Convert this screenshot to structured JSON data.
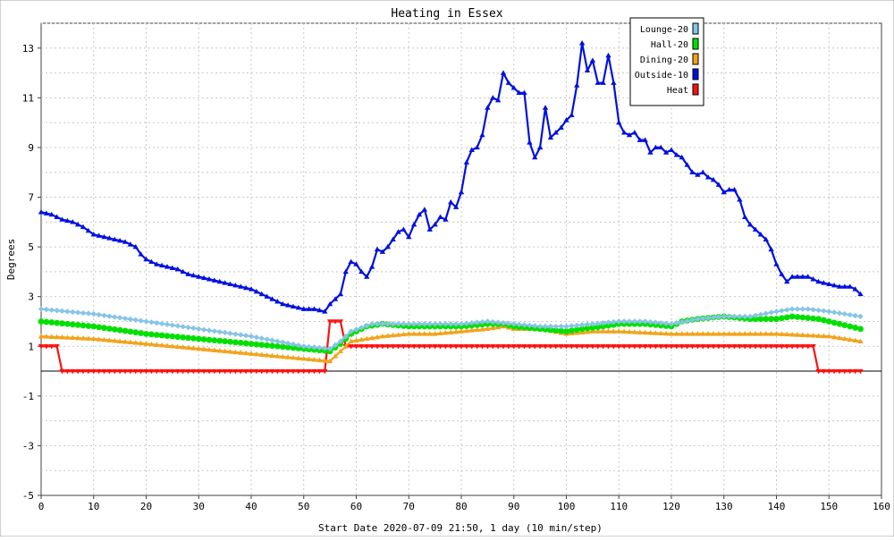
{
  "chart_data": {
    "type": "line",
    "title": "Heating in Essex",
    "xlabel": "Start Date 2020-07-09 21:50, 1 day (10 min/step)",
    "ylabel": "Degrees",
    "xlim": [
      0,
      160
    ],
    "ylim": [
      -5,
      14
    ],
    "xticks": [
      "0",
      "10",
      "20",
      "30",
      "40",
      "50",
      "60",
      "70",
      "80",
      "90",
      "100",
      "110",
      "120",
      "130",
      "140",
      "150",
      "160"
    ],
    "yticks": [
      "13",
      "11",
      "9",
      "7",
      "5",
      "3",
      "1",
      "-1",
      "-3",
      "-5"
    ],
    "grid": true,
    "legend_position": "top-right",
    "series": [
      {
        "name": "Lounge-20",
        "color": "#87c4e6",
        "marker": "diamond",
        "points": [
          [
            0,
            2.5
          ],
          [
            10,
            2.3
          ],
          [
            20,
            2.0
          ],
          [
            30,
            1.7
          ],
          [
            40,
            1.4
          ],
          [
            45,
            1.2
          ],
          [
            50,
            1.0
          ],
          [
            55,
            0.9
          ],
          [
            57,
            1.2
          ],
          [
            59,
            1.6
          ],
          [
            63,
            1.9
          ],
          [
            70,
            1.9
          ],
          [
            80,
            1.9
          ],
          [
            85,
            2.0
          ],
          [
            90,
            1.9
          ],
          [
            95,
            1.8
          ],
          [
            100,
            1.8
          ],
          [
            105,
            1.9
          ],
          [
            110,
            2.0
          ],
          [
            115,
            2.0
          ],
          [
            120,
            1.9
          ],
          [
            125,
            2.1
          ],
          [
            130,
            2.2
          ],
          [
            135,
            2.2
          ],
          [
            140,
            2.4
          ],
          [
            143,
            2.5
          ],
          [
            146,
            2.5
          ],
          [
            150,
            2.4
          ],
          [
            153,
            2.3
          ],
          [
            156,
            2.2
          ]
        ]
      },
      {
        "name": "Hall-20",
        "color": "#00e000",
        "marker": "circle",
        "points": [
          [
            0,
            2.0
          ],
          [
            10,
            1.8
          ],
          [
            20,
            1.5
          ],
          [
            30,
            1.3
          ],
          [
            40,
            1.1
          ],
          [
            50,
            0.9
          ],
          [
            55,
            0.8
          ],
          [
            57,
            1.1
          ],
          [
            59,
            1.5
          ],
          [
            62,
            1.8
          ],
          [
            65,
            1.9
          ],
          [
            70,
            1.8
          ],
          [
            80,
            1.8
          ],
          [
            85,
            1.9
          ],
          [
            88,
            1.9
          ],
          [
            90,
            1.8
          ],
          [
            95,
            1.7
          ],
          [
            100,
            1.6
          ],
          [
            103,
            1.7
          ],
          [
            107,
            1.8
          ],
          [
            110,
            1.9
          ],
          [
            115,
            1.9
          ],
          [
            120,
            1.8
          ],
          [
            122,
            2.0
          ],
          [
            125,
            2.1
          ],
          [
            130,
            2.2
          ],
          [
            135,
            2.1
          ],
          [
            140,
            2.1
          ],
          [
            143,
            2.2
          ],
          [
            148,
            2.1
          ],
          [
            152,
            1.9
          ],
          [
            156,
            1.7
          ]
        ]
      },
      {
        "name": "Dining-20",
        "color": "#f2a31a",
        "marker": "triangle",
        "points": [
          [
            0,
            1.4
          ],
          [
            10,
            1.3
          ],
          [
            20,
            1.1
          ],
          [
            30,
            0.9
          ],
          [
            40,
            0.7
          ],
          [
            50,
            0.5
          ],
          [
            55,
            0.4
          ],
          [
            57,
            0.8
          ],
          [
            59,
            1.2
          ],
          [
            62,
            1.3
          ],
          [
            65,
            1.4
          ],
          [
            70,
            1.5
          ],
          [
            75,
            1.5
          ],
          [
            80,
            1.6
          ],
          [
            85,
            1.7
          ],
          [
            88,
            1.8
          ],
          [
            90,
            1.7
          ],
          [
            95,
            1.7
          ],
          [
            100,
            1.5
          ],
          [
            105,
            1.6
          ],
          [
            110,
            1.6
          ],
          [
            120,
            1.5
          ],
          [
            130,
            1.5
          ],
          [
            140,
            1.5
          ],
          [
            150,
            1.4
          ],
          [
            156,
            1.2
          ]
        ]
      },
      {
        "name": "Outside-10",
        "color": "#0010e0",
        "marker": "triangle",
        "points": [
          [
            0,
            6.4
          ],
          [
            2,
            6.3
          ],
          [
            4,
            6.1
          ],
          [
            6,
            6.0
          ],
          [
            8,
            5.8
          ],
          [
            10,
            5.5
          ],
          [
            12,
            5.4
          ],
          [
            14,
            5.3
          ],
          [
            16,
            5.2
          ],
          [
            18,
            5.0
          ],
          [
            19,
            4.7
          ],
          [
            20,
            4.5
          ],
          [
            22,
            4.3
          ],
          [
            24,
            4.2
          ],
          [
            26,
            4.1
          ],
          [
            28,
            3.9
          ],
          [
            30,
            3.8
          ],
          [
            32,
            3.7
          ],
          [
            34,
            3.6
          ],
          [
            36,
            3.5
          ],
          [
            38,
            3.4
          ],
          [
            40,
            3.3
          ],
          [
            42,
            3.1
          ],
          [
            44,
            2.9
          ],
          [
            46,
            2.7
          ],
          [
            48,
            2.6
          ],
          [
            50,
            2.5
          ],
          [
            52,
            2.5
          ],
          [
            54,
            2.4
          ],
          [
            55,
            2.7
          ],
          [
            57,
            3.1
          ],
          [
            58,
            4.0
          ],
          [
            59,
            4.4
          ],
          [
            60,
            4.3
          ],
          [
            61,
            4.0
          ],
          [
            62,
            3.8
          ],
          [
            63,
            4.2
          ],
          [
            64,
            4.9
          ],
          [
            65,
            4.8
          ],
          [
            66,
            5.0
          ],
          [
            67,
            5.3
          ],
          [
            68,
            5.6
          ],
          [
            69,
            5.7
          ],
          [
            70,
            5.4
          ],
          [
            71,
            5.9
          ],
          [
            72,
            6.3
          ],
          [
            73,
            6.5
          ],
          [
            74,
            5.7
          ],
          [
            75,
            5.9
          ],
          [
            76,
            6.2
          ],
          [
            77,
            6.1
          ],
          [
            78,
            6.8
          ],
          [
            79,
            6.6
          ],
          [
            80,
            7.2
          ],
          [
            81,
            8.4
          ],
          [
            82,
            8.9
          ],
          [
            83,
            9.0
          ],
          [
            84,
            9.5
          ],
          [
            85,
            10.6
          ],
          [
            86,
            11.0
          ],
          [
            87,
            10.9
          ],
          [
            88,
            12.0
          ],
          [
            89,
            11.6
          ],
          [
            90,
            11.4
          ],
          [
            91,
            11.2
          ],
          [
            92,
            11.2
          ],
          [
            93,
            9.2
          ],
          [
            94,
            8.6
          ],
          [
            95,
            9.0
          ],
          [
            96,
            10.6
          ],
          [
            97,
            9.4
          ],
          [
            98,
            9.6
          ],
          [
            99,
            9.8
          ],
          [
            100,
            10.1
          ],
          [
            101,
            10.3
          ],
          [
            102,
            11.5
          ],
          [
            103,
            13.2
          ],
          [
            104,
            12.1
          ],
          [
            105,
            12.5
          ],
          [
            106,
            11.6
          ],
          [
            107,
            11.6
          ],
          [
            108,
            12.7
          ],
          [
            109,
            11.6
          ],
          [
            110,
            10.0
          ],
          [
            111,
            9.6
          ],
          [
            112,
            9.5
          ],
          [
            113,
            9.6
          ],
          [
            114,
            9.3
          ],
          [
            115,
            9.3
          ],
          [
            116,
            8.8
          ],
          [
            117,
            9.0
          ],
          [
            118,
            9.0
          ],
          [
            119,
            8.8
          ],
          [
            120,
            8.9
          ],
          [
            121,
            8.7
          ],
          [
            122,
            8.6
          ],
          [
            123,
            8.3
          ],
          [
            124,
            8.0
          ],
          [
            125,
            7.9
          ],
          [
            126,
            8.0
          ],
          [
            127,
            7.8
          ],
          [
            128,
            7.7
          ],
          [
            129,
            7.5
          ],
          [
            130,
            7.2
          ],
          [
            131,
            7.3
          ],
          [
            132,
            7.3
          ],
          [
            133,
            6.9
          ],
          [
            134,
            6.2
          ],
          [
            135,
            5.9
          ],
          [
            136,
            5.7
          ],
          [
            137,
            5.5
          ],
          [
            138,
            5.3
          ],
          [
            139,
            4.9
          ],
          [
            140,
            4.3
          ],
          [
            141,
            3.9
          ],
          [
            142,
            3.6
          ],
          [
            143,
            3.8
          ],
          [
            144,
            3.8
          ],
          [
            145,
            3.8
          ],
          [
            146,
            3.8
          ],
          [
            147,
            3.7
          ],
          [
            148,
            3.6
          ],
          [
            150,
            3.5
          ],
          [
            152,
            3.4
          ],
          [
            154,
            3.4
          ],
          [
            155,
            3.3
          ],
          [
            156,
            3.1
          ]
        ]
      },
      {
        "name": "Heat",
        "color": "#ff1010",
        "marker": "triangle-down",
        "points": [
          [
            0,
            1
          ],
          [
            3,
            1
          ],
          [
            4,
            0
          ],
          [
            54,
            0
          ],
          [
            55,
            2
          ],
          [
            57,
            2
          ],
          [
            58,
            1
          ],
          [
            147,
            1
          ],
          [
            148,
            0
          ],
          [
            156,
            0
          ]
        ]
      }
    ]
  }
}
